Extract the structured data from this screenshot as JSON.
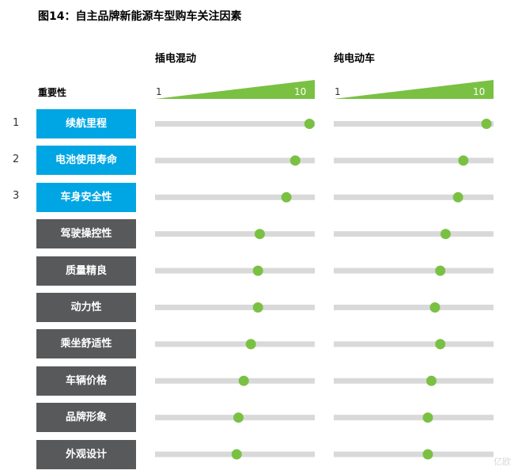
{
  "title": "图14：自主品牌新能源车型购车关注因素",
  "importance_label": "重要性",
  "watermark": "亿欧",
  "chart_data": {
    "type": "dot",
    "title": "图14：自主品牌新能源车型购车关注因素",
    "scale": {
      "min": 1,
      "max": 10,
      "min_label": "1",
      "max_label": "10"
    },
    "categories": [
      "续航里程",
      "电池使用寿命",
      "车身安全性",
      "驾驶操控性",
      "质量精良",
      "动力性",
      "乘坐舒适性",
      "车辆价格",
      "品牌形象",
      "外观设计"
    ],
    "ranks": [
      "1",
      "2",
      "3"
    ],
    "series": [
      {
        "name": "插电混动",
        "values": [
          9.7,
          8.9,
          8.4,
          6.9,
          6.8,
          6.8,
          6.4,
          6.0,
          5.7,
          5.6
        ]
      },
      {
        "name": "纯电动车",
        "values": [
          9.6,
          8.3,
          8.0,
          7.3,
          7.0,
          6.7,
          7.0,
          6.5,
          6.3,
          6.3
        ]
      }
    ],
    "colors": {
      "highlight": "#00a6e4",
      "normal": "#58595b",
      "dot": "#7ac143",
      "track": "#d9d9d9",
      "wedge": "#7ac143"
    }
  }
}
